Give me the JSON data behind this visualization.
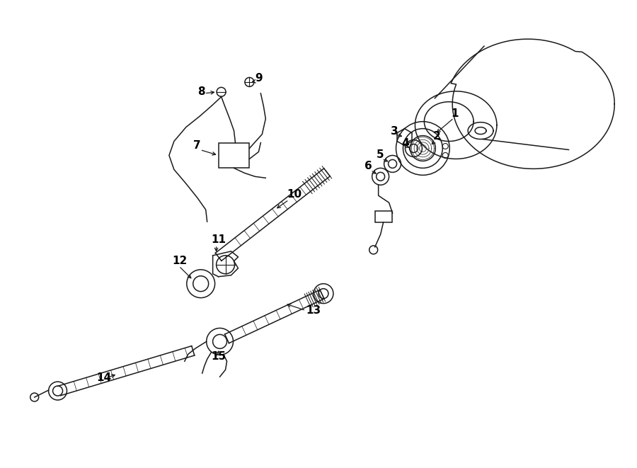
{
  "background_color": "#ffffff",
  "line_color": "#1a1a1a",
  "text_color": "#000000",
  "figsize": [
    9.0,
    6.61
  ],
  "dpi": 100,
  "lw": 1.1,
  "label_fontsize": 11
}
